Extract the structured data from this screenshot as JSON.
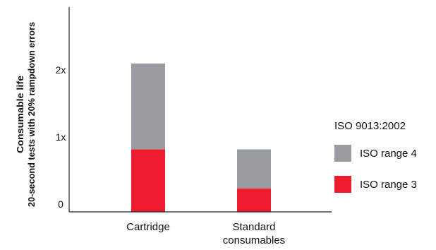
{
  "chart_data": {
    "type": "bar",
    "stacked": true,
    "categories": [
      "Cartridge",
      "Standard\nconsumables"
    ],
    "series": [
      {
        "name": "ISO range 3",
        "values": [
          0.93,
          0.35
        ],
        "color": "#ed1c2e"
      },
      {
        "name": "ISO range 4",
        "values": [
          1.28,
          0.58
        ],
        "color": "#999ca1"
      }
    ],
    "ylabel": [
      "Consumable life",
      "20-second tests with 20% rampdown errors"
    ],
    "yticks": [
      "0",
      "1x",
      "2x"
    ],
    "ytick_values": [
      0,
      1,
      2
    ],
    "ylim": [
      0,
      3.05
    ],
    "grid": false,
    "legend": {
      "title": "ISO 9013:2002",
      "position": "right"
    }
  }
}
